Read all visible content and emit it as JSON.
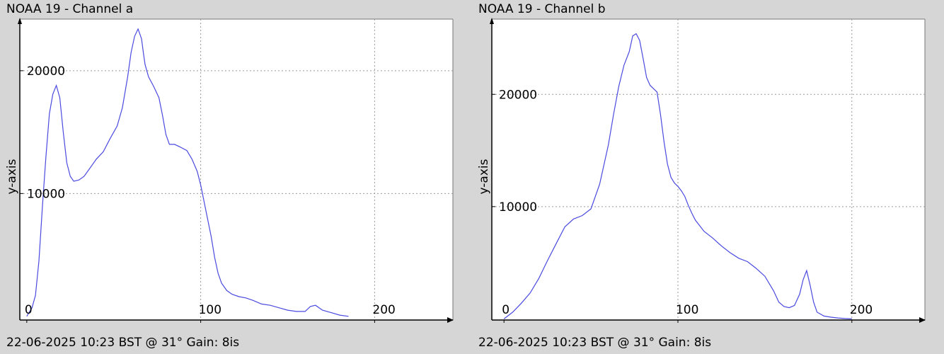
{
  "chart_data": [
    {
      "type": "line",
      "title": "NOAA 19 - Channel a",
      "footer": "22-06-2025 10:23 BST @ 31° Gain: 8is",
      "xlabel": "",
      "ylabel": "y-axis",
      "xlim": [
        -4,
        245
      ],
      "ylim": [
        -300,
        24200
      ],
      "x_ticks": [
        0,
        100,
        200
      ],
      "x_tick_labels": [
        "0",
        "100",
        "200"
      ],
      "y_ticks": [
        10000,
        20000
      ],
      "y_tick_labels": [
        "10000",
        "20000"
      ],
      "grid": true,
      "line_color": "#4a4ae0",
      "series": [
        {
          "x": [
            0,
            3,
            5,
            7,
            9,
            11,
            13,
            15,
            17,
            19,
            21,
            23,
            25,
            27,
            30,
            33,
            36,
            40,
            44,
            48,
            52,
            55,
            58,
            60,
            62,
            64,
            66,
            67,
            68,
            70,
            73,
            76,
            78,
            80,
            82,
            85,
            88,
            92,
            95,
            98,
            100,
            103,
            106,
            108,
            110,
            112,
            115,
            118,
            122,
            126,
            130,
            135,
            140,
            145,
            150,
            155,
            160,
            163,
            166,
            170,
            175,
            180,
            185
          ],
          "y": [
            0,
            700,
            1700,
            4500,
            9000,
            13000,
            16500,
            18100,
            18800,
            17800,
            15000,
            12500,
            11400,
            11000,
            11100,
            11400,
            12000,
            12800,
            13400,
            14500,
            15500,
            17000,
            19500,
            21500,
            22800,
            23400,
            22600,
            21500,
            20500,
            19500,
            18700,
            17800,
            16400,
            14800,
            14000,
            14000,
            13800,
            13500,
            12800,
            11800,
            10700,
            8600,
            6500,
            4800,
            3500,
            2700,
            2100,
            1800,
            1600,
            1500,
            1300,
            1000,
            900,
            700,
            500,
            400,
            400,
            800,
            900,
            500,
            300,
            100,
            0
          ]
        }
      ]
    },
    {
      "type": "line",
      "title": "NOAA 19 - Channel b",
      "footer": "22-06-2025 10:23 BST @ 31° Gain: 8is",
      "xlabel": "",
      "ylabel": "y-axis",
      "xlim": [
        -7,
        242
      ],
      "ylim": [
        -100,
        26700
      ],
      "x_ticks": [
        0,
        100,
        200
      ],
      "x_tick_labels": [
        "0",
        "100",
        "200"
      ],
      "y_ticks": [
        10000,
        20000
      ],
      "y_tick_labels": [
        "10000",
        "20000"
      ],
      "grid": true,
      "line_color": "#4a4ae0",
      "series": [
        {
          "x": [
            0,
            5,
            10,
            15,
            20,
            25,
            30,
            35,
            40,
            45,
            50,
            55,
            60,
            63,
            66,
            69,
            72,
            74,
            76,
            78,
            80,
            82,
            84,
            86,
            88,
            90,
            92,
            94,
            96,
            98,
            100,
            102,
            104,
            106,
            108,
            110,
            115,
            120,
            125,
            130,
            135,
            140,
            145,
            150,
            155,
            158,
            161,
            164,
            167,
            170,
            172,
            174,
            176,
            178,
            180,
            184,
            188,
            192,
            196,
            200
          ],
          "y": [
            0,
            600,
            1400,
            2300,
            3600,
            5200,
            6700,
            8200,
            8900,
            9200,
            9800,
            12000,
            15500,
            18200,
            20700,
            22600,
            23800,
            25200,
            25400,
            24800,
            23200,
            21500,
            20800,
            20500,
            20200,
            18200,
            15800,
            13800,
            12600,
            12100,
            11800,
            11400,
            10900,
            10100,
            9400,
            8800,
            7800,
            7200,
            6500,
            5900,
            5400,
            5100,
            4500,
            3800,
            2500,
            1500,
            1100,
            1000,
            1200,
            2200,
            3500,
            4300,
            3000,
            1500,
            600,
            250,
            150,
            80,
            30,
            0
          ]
        }
      ]
    }
  ]
}
